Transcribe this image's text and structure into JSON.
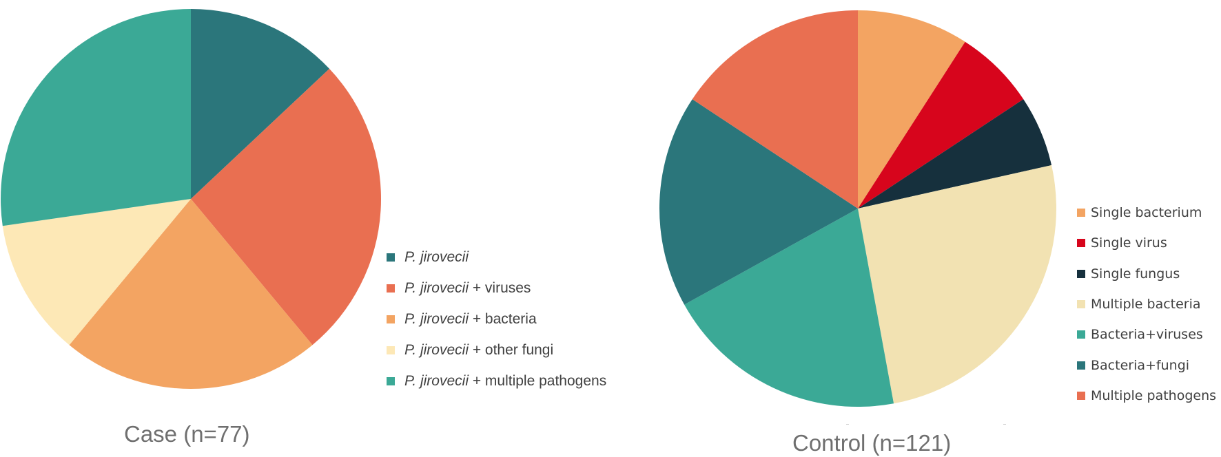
{
  "colors": {
    "teal_dark": "#2b767b",
    "coral": "#e96f51",
    "orange": "#f3a462",
    "cream": "#fde8b6",
    "teal": "#3ba996",
    "red": "#d7051c",
    "navy": "#16303d",
    "beige": "#f2e2b2"
  },
  "chart_data": [
    {
      "type": "pie",
      "title": "Case (n=77)",
      "series_prefix": "P. jirovecii",
      "labels": [
        "P. jirovecii",
        "P. jirovecii + viruses",
        "P. jirovecii + bacteria",
        "P. jirovecii + other fungi",
        "P. jirovecii + multiple pathogens"
      ],
      "label_suffixes": [
        "",
        " + viruses",
        " + bacteria",
        " + other fungi",
        " + multiple pathogens"
      ],
      "values": [
        10,
        20,
        17,
        9,
        21
      ],
      "colors": [
        "#2b767b",
        "#e96f51",
        "#f3a462",
        "#fde8b6",
        "#3ba996"
      ],
      "legend_position": "right"
    },
    {
      "type": "pie",
      "title": "Control (n=121)",
      "labels": [
        "Single bacterium",
        "Single virus",
        "Single fungus",
        "Multiple bacteria",
        "Bacteria+viruses",
        "Bacteria+fungi",
        "Multiple pathogens"
      ],
      "values": [
        11,
        8,
        7,
        31,
        24,
        21,
        19
      ],
      "colors": [
        "#f3a462",
        "#d7051c",
        "#16303d",
        "#f2e2b2",
        "#3ba996",
        "#2b767b",
        "#e96f51"
      ],
      "legend_position": "right"
    }
  ]
}
